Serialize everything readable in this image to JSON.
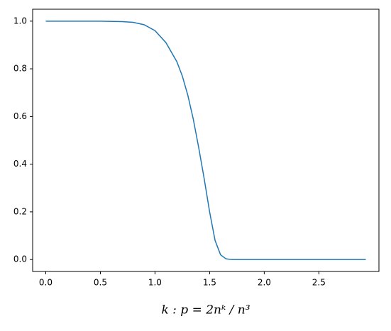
{
  "chart_data": {
    "type": "line",
    "xlabel": "k : p = 2nᵏ / n³",
    "x": [
      0,
      0.5,
      0.7,
      0.8,
      0.9,
      1.0,
      1.1,
      1.2,
      1.25,
      1.3,
      1.35,
      1.4,
      1.45,
      1.5,
      1.55,
      1.6,
      1.65,
      1.7,
      2.0,
      2.5,
      2.93
    ],
    "series": [
      {
        "color": "#1f77b4",
        "values": [
          1,
          1,
          0.998,
          0.995,
          0.985,
          0.96,
          0.91,
          0.83,
          0.77,
          0.69,
          0.59,
          0.47,
          0.34,
          0.2,
          0.08,
          0.02,
          0.003,
          0,
          0,
          0,
          0
        ]
      }
    ],
    "xlim": [
      -0.12,
      3.05
    ],
    "ylim": [
      -0.05,
      1.05
    ],
    "xticks": [
      {
        "value": 0,
        "label": "0.0"
      },
      {
        "value": 0.5,
        "label": "0.5"
      },
      {
        "value": 1,
        "label": "1.0"
      },
      {
        "value": 1.5,
        "label": "1.5"
      },
      {
        "value": 2,
        "label": "2.0"
      },
      {
        "value": 2.5,
        "label": "2.5"
      }
    ],
    "yticks": [
      {
        "value": 0,
        "label": "0.0"
      },
      {
        "value": 0.2,
        "label": "0.2"
      },
      {
        "value": 0.4,
        "label": "0.4"
      },
      {
        "value": 0.6,
        "label": "0.6"
      },
      {
        "value": 0.8,
        "label": "0.8"
      },
      {
        "value": 1,
        "label": "1.0"
      }
    ],
    "grid": false
  }
}
